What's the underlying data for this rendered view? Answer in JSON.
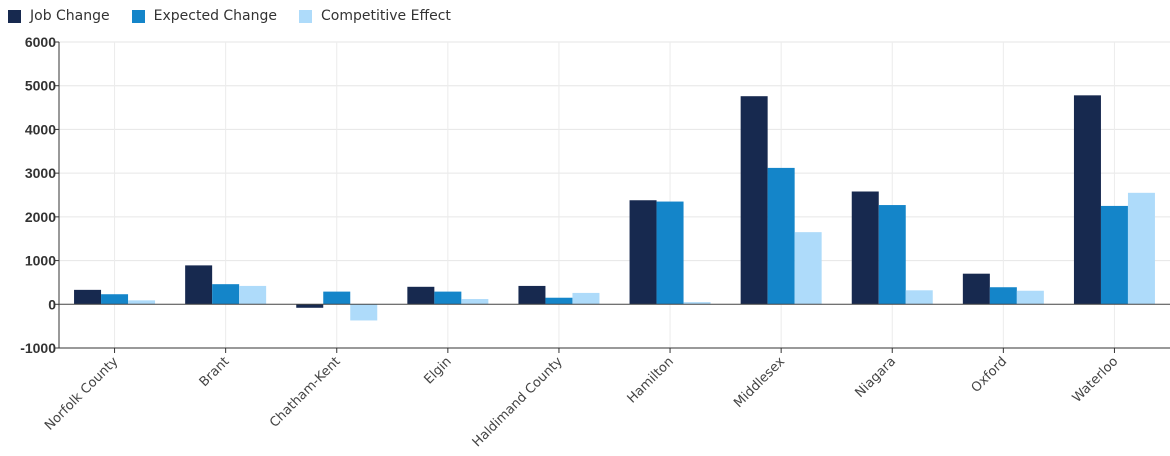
{
  "chart_data": {
    "type": "bar",
    "categories": [
      "Norfolk County",
      "Brant",
      "Chatham-Kent",
      "Elgin",
      "Haldimand County",
      "Hamilton",
      "Middlesex",
      "Niagara",
      "Oxford",
      "Waterloo"
    ],
    "series": [
      {
        "name": "Job Change",
        "color": "#17294f",
        "values": [
          330,
          890,
          -80,
          400,
          420,
          2380,
          4760,
          2580,
          700,
          4780
        ]
      },
      {
        "name": "Expected Change",
        "color": "#1485c9",
        "values": [
          230,
          460,
          290,
          290,
          150,
          2350,
          3120,
          2270,
          390,
          2250
        ]
      },
      {
        "name": "Competitive Effect",
        "color": "#aedbfa",
        "values": [
          90,
          420,
          -370,
          120,
          260,
          50,
          1650,
          320,
          310,
          2550
        ]
      }
    ],
    "ylim": [
      -1000,
      6000
    ],
    "yticks": [
      -1000,
      0,
      1000,
      2000,
      3000,
      4000,
      5000,
      6000
    ],
    "grid": true,
    "legend_position": "top-left",
    "title": "",
    "xlabel": "",
    "ylabel": ""
  }
}
